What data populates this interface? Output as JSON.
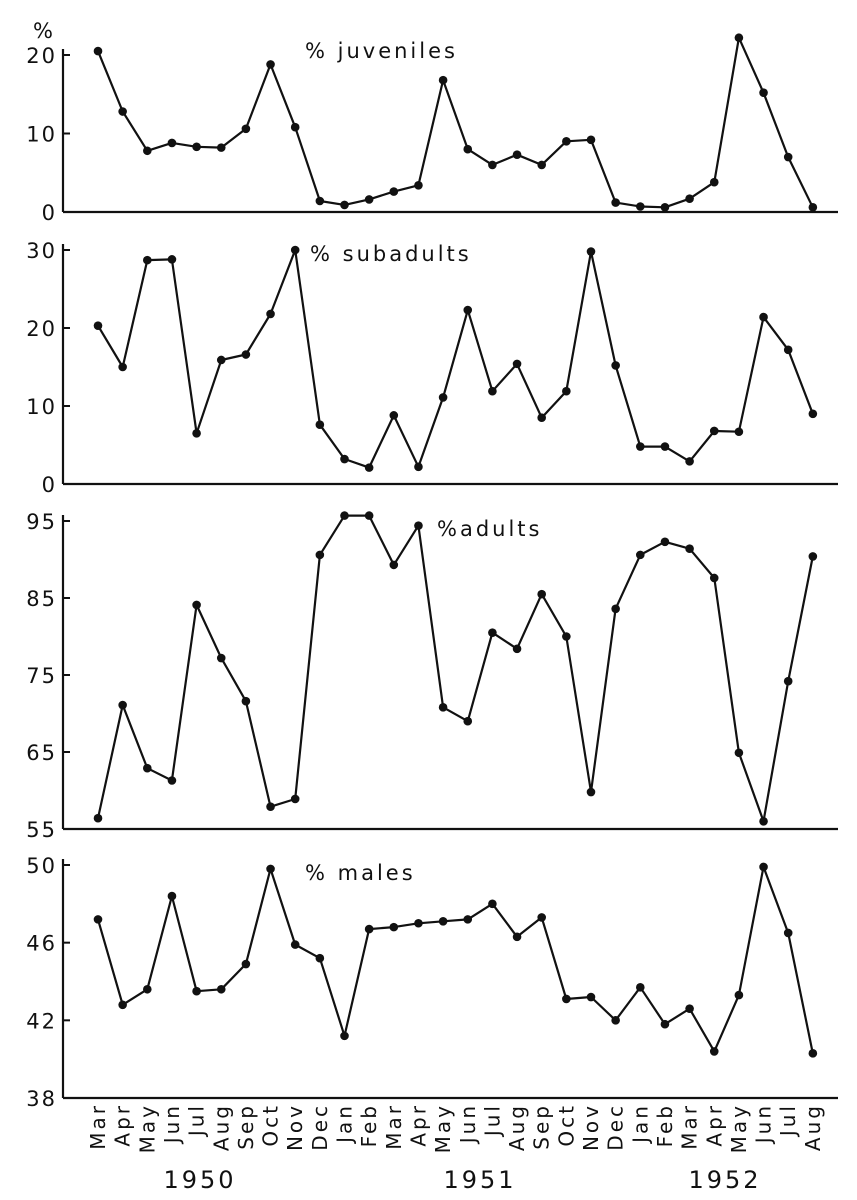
{
  "chart_data": [
    {
      "type": "line",
      "title": "% juveniles",
      "y_axis_unit": "%",
      "ylim": [
        0,
        20
      ],
      "yticks": [
        "0",
        "10",
        "20"
      ],
      "values": [
        20.5,
        12.8,
        7.8,
        8.8,
        8.3,
        8.2,
        10.6,
        18.8,
        10.8,
        1.4,
        0.9,
        1.6,
        2.6,
        3.4,
        16.8,
        8.0,
        6.0,
        7.3,
        6.0,
        9.0,
        9.2,
        1.2,
        0.7,
        0.6,
        1.7,
        3.8,
        22.2,
        15.2,
        7.0,
        0.6
      ]
    },
    {
      "type": "line",
      "title": "% subadults",
      "ylim": [
        0,
        30
      ],
      "yticks": [
        "0",
        "10",
        "20",
        "30"
      ],
      "values": [
        20.3,
        15.0,
        28.7,
        28.8,
        6.5,
        15.9,
        16.6,
        21.8,
        30.0,
        7.6,
        3.2,
        2.1,
        8.8,
        2.2,
        11.1,
        22.3,
        11.9,
        15.4,
        8.5,
        11.9,
        29.8,
        15.2,
        4.8,
        4.8,
        2.9,
        6.8,
        6.7,
        21.4,
        17.2,
        9.0
      ]
    },
    {
      "type": "line",
      "title": "%adults",
      "ylim": [
        55,
        95
      ],
      "yticks": [
        "55",
        "65",
        "75",
        "85",
        "95"
      ],
      "values": [
        56.4,
        71.1,
        62.9,
        61.3,
        84.1,
        77.2,
        71.6,
        57.9,
        58.9,
        90.6,
        95.7,
        95.7,
        89.3,
        94.4,
        70.8,
        69.0,
        80.5,
        78.4,
        85.5,
        80.0,
        59.8,
        83.6,
        90.6,
        92.3,
        91.4,
        87.6,
        64.9,
        56.0,
        74.2,
        90.4
      ]
    },
    {
      "type": "line",
      "title": "% males",
      "ylim": [
        38,
        50
      ],
      "yticks": [
        "38",
        "42",
        "46",
        "50"
      ],
      "values": [
        47.2,
        42.8,
        43.6,
        48.4,
        43.5,
        43.6,
        44.9,
        49.8,
        45.9,
        45.2,
        41.2,
        46.7,
        46.8,
        47.0,
        47.1,
        47.2,
        48.0,
        46.3,
        47.3,
        43.1,
        43.2,
        42.0,
        43.7,
        41.8,
        42.6,
        40.4,
        43.3,
        49.9,
        46.5,
        40.3
      ]
    }
  ],
  "x_axis": {
    "months": [
      "Mar",
      "Apr",
      "May",
      "Jun",
      "Jul",
      "Aug",
      "Sep",
      "Oct",
      "Nov",
      "Dec",
      "Jan",
      "Feb",
      "Mar",
      "Apr",
      "May",
      "Jun",
      "Jul",
      "Aug",
      "Sep",
      "Oct",
      "Nov",
      "Dec",
      "Jan",
      "Feb",
      "Mar",
      "Apr",
      "May",
      "Jun",
      "Jul",
      "Aug"
    ],
    "years": [
      "1950",
      "1951",
      "1952"
    ]
  },
  "colors": {
    "ink": "#111111",
    "background": "#ffffff"
  }
}
